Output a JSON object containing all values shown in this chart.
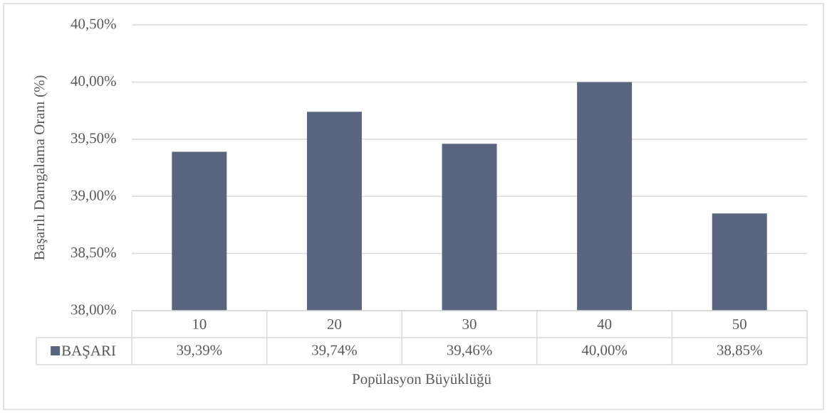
{
  "chart_data": {
    "type": "bar",
    "xlabel": "Popülasyon Büyüklüğü",
    "ylabel": "Başarılı Damgalama Oranı (%)",
    "categories": [
      "10",
      "20",
      "30",
      "40",
      "50"
    ],
    "series": [
      {
        "name": "BAŞARI",
        "color": "#5a6680",
        "values": [
          39.39,
          39.74,
          39.46,
          40.0,
          38.85
        ],
        "value_labels": [
          "39,39%",
          "39,74%",
          "39,46%",
          "40,00%",
          "38,85%"
        ]
      }
    ],
    "ylim": [
      38,
      40.5
    ],
    "yticks": [
      {
        "value": 38,
        "label": "38,00%"
      },
      {
        "value": 38.5,
        "label": "38,50%"
      },
      {
        "value": 39,
        "label": "39,00%"
      },
      {
        "value": 39.5,
        "label": "39,50%"
      },
      {
        "value": 40,
        "label": "40,00%"
      },
      {
        "value": 40.5,
        "label": "40,50%"
      }
    ],
    "grid": "y",
    "legend": "bottom left"
  }
}
